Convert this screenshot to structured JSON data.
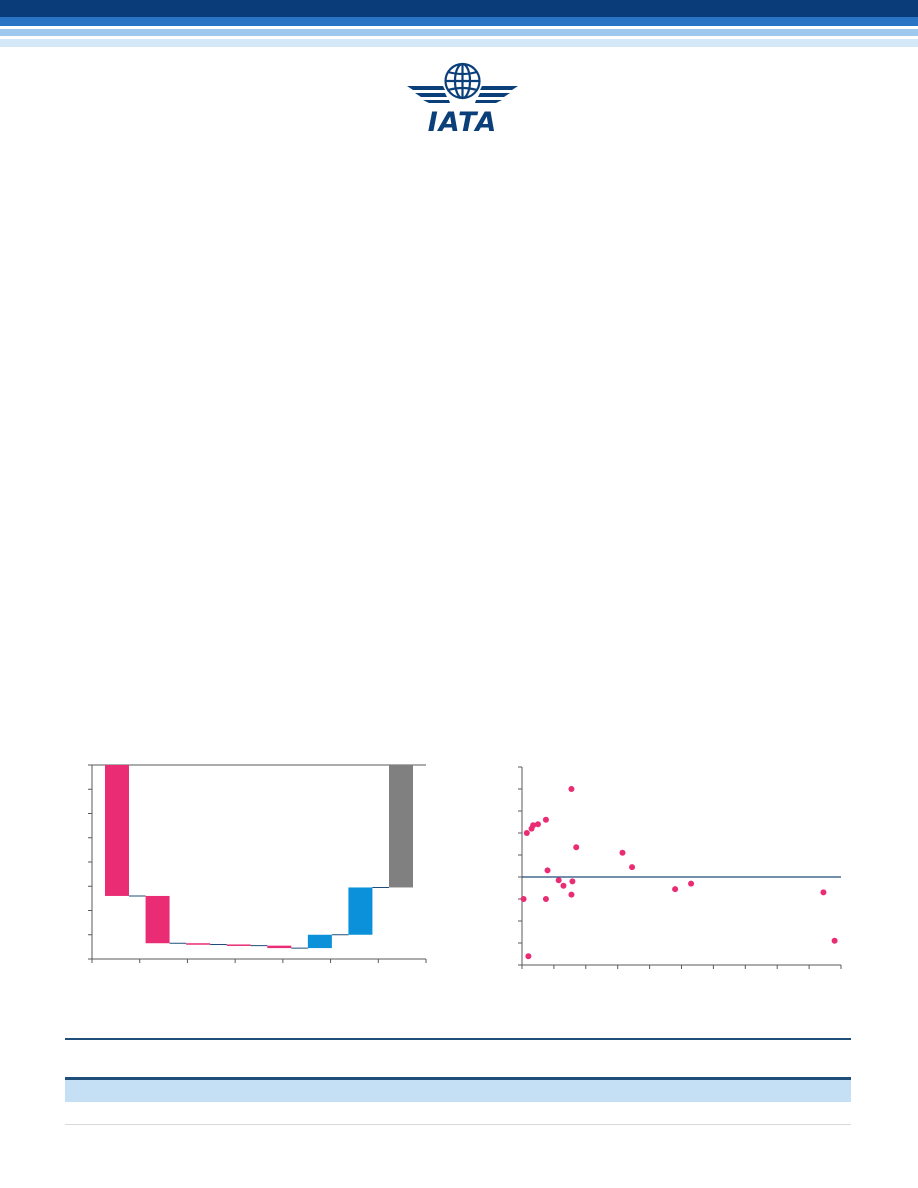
{
  "header": {
    "logo_text": "IATA",
    "colors": {
      "navy": "#0b3c7a",
      "mid_blue": "#2a74c5",
      "light_blue": "#9ec8ee",
      "pale_blue": "#d4e8f8"
    }
  },
  "waterfall": {
    "chart_data": {
      "type": "bar",
      "subtype": "waterfall",
      "ylim": [
        0,
        8
      ],
      "bars": [
        {
          "start": 8.0,
          "end": 2.6,
          "kind": "decrease"
        },
        {
          "start": 2.6,
          "end": 0.65,
          "kind": "decrease"
        },
        {
          "start": 0.65,
          "end": 0.6,
          "kind": "decrease"
        },
        {
          "start": 0.6,
          "end": 0.55,
          "kind": "decrease"
        },
        {
          "start": 0.55,
          "end": 0.45,
          "kind": "decrease"
        },
        {
          "start": 0.45,
          "end": 1.0,
          "kind": "increase"
        },
        {
          "start": 1.0,
          "end": 2.95,
          "kind": "increase"
        },
        {
          "start": 2.95,
          "end": 8.0,
          "kind": "total"
        }
      ],
      "colors": {
        "decrease": "#e92c73",
        "increase": "#0a91d9",
        "total": "#808080"
      }
    }
  },
  "scatter": {
    "chart_data": {
      "type": "scatter",
      "xlim": [
        0,
        100
      ],
      "ylim": [
        -4,
        5
      ],
      "zero_line": 0,
      "points": [
        [
          0.5,
          -1.0
        ],
        [
          1.5,
          2.0
        ],
        [
          3,
          2.2
        ],
        [
          3.5,
          2.35
        ],
        [
          5,
          2.4
        ],
        [
          2,
          -3.6
        ],
        [
          7.5,
          2.6
        ],
        [
          8,
          0.3
        ],
        [
          7.5,
          -1.0
        ],
        [
          11.5,
          -0.15
        ],
        [
          13,
          -0.4
        ],
        [
          15.5,
          4.0
        ],
        [
          15.8,
          -0.2
        ],
        [
          15.5,
          -0.8
        ],
        [
          17,
          1.35
        ],
        [
          31.5,
          1.1
        ],
        [
          34.5,
          0.45
        ],
        [
          48,
          -0.55
        ],
        [
          53,
          -0.3
        ],
        [
          94.5,
          -0.7
        ],
        [
          98,
          -2.9
        ]
      ],
      "color": "#e92c73"
    }
  }
}
